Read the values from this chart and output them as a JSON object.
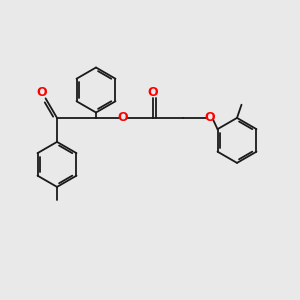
{
  "background_color": "#e9e9e9",
  "bond_color": "#1a1a1a",
  "oxygen_color": "#ff0000",
  "line_width": 1.3,
  "figsize": [
    3.0,
    3.0
  ],
  "dpi": 100,
  "xlim": [
    0,
    10
  ],
  "ylim": [
    0,
    10
  ],
  "ring_r": 0.75,
  "dbl_off": 0.09
}
